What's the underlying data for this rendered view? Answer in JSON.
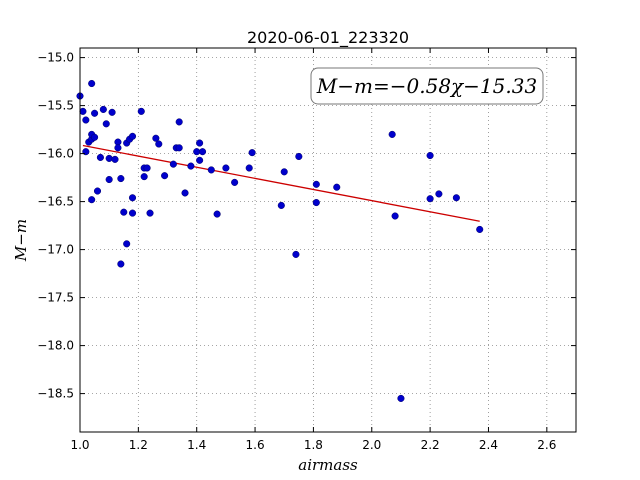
{
  "chart_data": {
    "type": "scatter",
    "title": "2020-06-01_223320",
    "xlabel": "airmass",
    "ylabel": "M−m",
    "xlim": [
      1.0,
      2.7
    ],
    "ylim": [
      -18.9,
      -14.9
    ],
    "y_inverted": true,
    "grid": true,
    "xticks": [
      1.0,
      1.2,
      1.4,
      1.6,
      1.8,
      2.0,
      2.2,
      2.4,
      2.6
    ],
    "xtick_labels": [
      "1.0",
      "1.2",
      "1.4",
      "1.6",
      "1.8",
      "2.0",
      "2.2",
      "2.4",
      "2.6"
    ],
    "yticks": [
      -15.0,
      -15.5,
      -16.0,
      -16.5,
      -17.0,
      -17.5,
      -18.0,
      -18.5
    ],
    "ytick_labels": [
      "−15.0",
      "−15.5",
      "−16.0",
      "−16.5",
      "−17.0",
      "−17.5",
      "−18.0",
      "−18.5"
    ],
    "annotation": "M−m=−0.58χ−15.33",
    "legend_position": "top-right",
    "point_color": "#0000cc",
    "fit_color": "#cc0000",
    "fit": {
      "slope": -0.58,
      "intercept": -15.33,
      "x_range": [
        1.01,
        2.37
      ]
    },
    "points": [
      [
        1.0,
        -15.4
      ],
      [
        1.01,
        -15.56
      ],
      [
        1.02,
        -15.98
      ],
      [
        1.02,
        -15.65
      ],
      [
        1.03,
        -15.88
      ],
      [
        1.04,
        -15.85
      ],
      [
        1.04,
        -16.48
      ],
      [
        1.04,
        -15.8
      ],
      [
        1.04,
        -15.27
      ],
      [
        1.05,
        -15.58
      ],
      [
        1.05,
        -15.83
      ],
      [
        1.06,
        -16.39
      ],
      [
        1.07,
        -16.04
      ],
      [
        1.08,
        -15.54
      ],
      [
        1.09,
        -15.69
      ],
      [
        1.1,
        -16.27
      ],
      [
        1.1,
        -16.05
      ],
      [
        1.11,
        -15.57
      ],
      [
        1.12,
        -16.06
      ],
      [
        1.13,
        -15.88
      ],
      [
        1.13,
        -15.94
      ],
      [
        1.14,
        -16.26
      ],
      [
        1.14,
        -17.15
      ],
      [
        1.15,
        -16.61
      ],
      [
        1.16,
        -15.89
      ],
      [
        1.16,
        -16.94
      ],
      [
        1.17,
        -15.85
      ],
      [
        1.18,
        -15.82
      ],
      [
        1.18,
        -16.46
      ],
      [
        1.18,
        -16.62
      ],
      [
        1.21,
        -15.56
      ],
      [
        1.22,
        -16.15
      ],
      [
        1.22,
        -16.24
      ],
      [
        1.23,
        -16.15
      ],
      [
        1.24,
        -16.62
      ],
      [
        1.26,
        -15.84
      ],
      [
        1.27,
        -15.9
      ],
      [
        1.29,
        -16.23
      ],
      [
        1.32,
        -16.11
      ],
      [
        1.33,
        -15.94
      ],
      [
        1.34,
        -15.94
      ],
      [
        1.34,
        -15.67
      ],
      [
        1.36,
        -16.41
      ],
      [
        1.38,
        -16.13
      ],
      [
        1.4,
        -15.98
      ],
      [
        1.41,
        -15.89
      ],
      [
        1.41,
        -16.07
      ],
      [
        1.42,
        -15.98
      ],
      [
        1.45,
        -16.17
      ],
      [
        1.47,
        -16.63
      ],
      [
        1.5,
        -16.15
      ],
      [
        1.53,
        -16.3
      ],
      [
        1.58,
        -16.15
      ],
      [
        1.59,
        -15.99
      ],
      [
        1.69,
        -16.54
      ],
      [
        1.7,
        -16.19
      ],
      [
        1.74,
        -17.05
      ],
      [
        1.75,
        -16.03
      ],
      [
        1.81,
        -16.32
      ],
      [
        1.81,
        -16.51
      ],
      [
        1.88,
        -16.35
      ],
      [
        2.07,
        -15.8
      ],
      [
        2.08,
        -16.65
      ],
      [
        2.1,
        -18.55
      ],
      [
        2.2,
        -16.02
      ],
      [
        2.2,
        -16.47
      ],
      [
        2.23,
        -16.42
      ],
      [
        2.29,
        -16.46
      ],
      [
        2.37,
        -16.79
      ]
    ]
  }
}
